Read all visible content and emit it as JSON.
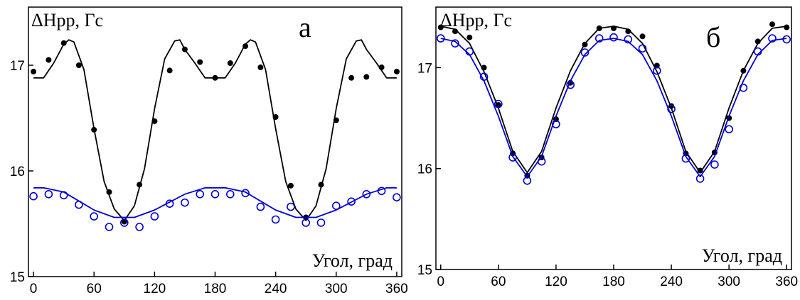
{
  "chart_data": [
    {
      "type": "scatter",
      "panel_label": "а",
      "ylabel": "ΔHpp, Гс",
      "xlabel": "Угол, град",
      "xlim": [
        -5,
        365
      ],
      "ylim": [
        15,
        17.55
      ],
      "x_ticks": [
        0,
        60,
        120,
        180,
        240,
        300,
        360
      ],
      "y_ticks": [
        15,
        16,
        17
      ],
      "series": [
        {
          "color": "#000000",
          "marker": "filled-circle",
          "points": [
            [
              0,
              16.94
            ],
            [
              15,
              17.05
            ],
            [
              30,
              17.21
            ],
            [
              45,
              17.0
            ],
            [
              60,
              16.39
            ],
            [
              75,
              15.8
            ],
            [
              90,
              15.52
            ],
            [
              105,
              15.87
            ],
            [
              120,
              16.47
            ],
            [
              135,
              16.95
            ],
            [
              150,
              17.15
            ],
            [
              165,
              17.03
            ],
            [
              180,
              16.88
            ],
            [
              195,
              17.02
            ],
            [
              210,
              17.18
            ],
            [
              225,
              16.98
            ],
            [
              240,
              16.51
            ],
            [
              255,
              15.86
            ],
            [
              270,
              15.56
            ],
            [
              285,
              15.87
            ],
            [
              300,
              16.48
            ],
            [
              315,
              16.88
            ],
            [
              330,
              16.89
            ],
            [
              345,
              16.98
            ],
            [
              360,
              16.94
            ]
          ]
        },
        {
          "color": "#000000",
          "marker": "line",
          "points": [
            [
              0,
              16.88
            ],
            [
              10,
              16.88
            ],
            [
              20,
              17.02
            ],
            [
              30,
              17.2
            ],
            [
              35,
              17.24
            ],
            [
              40,
              17.22
            ],
            [
              50,
              16.96
            ],
            [
              60,
              16.4
            ],
            [
              70,
              15.9
            ],
            [
              80,
              15.64
            ],
            [
              90,
              15.53
            ],
            [
              100,
              15.67
            ],
            [
              110,
              16.02
            ],
            [
              120,
              16.59
            ],
            [
              130,
              17.06
            ],
            [
              140,
              17.23
            ],
            [
              145,
              17.24
            ],
            [
              150,
              17.15
            ],
            [
              160,
              17.02
            ],
            [
              170,
              16.88
            ],
            [
              180,
              16.88
            ],
            [
              190,
              16.88
            ],
            [
              200,
              17.02
            ],
            [
              210,
              17.2
            ],
            [
              215,
              17.24
            ],
            [
              220,
              17.22
            ],
            [
              230,
              16.96
            ],
            [
              240,
              16.4
            ],
            [
              250,
              15.9
            ],
            [
              260,
              15.64
            ],
            [
              270,
              15.53
            ],
            [
              280,
              15.67
            ],
            [
              290,
              16.02
            ],
            [
              300,
              16.59
            ],
            [
              310,
              17.06
            ],
            [
              320,
              17.23
            ],
            [
              325,
              17.24
            ],
            [
              330,
              17.15
            ],
            [
              340,
              17.02
            ],
            [
              350,
              16.88
            ],
            [
              360,
              16.88
            ]
          ]
        },
        {
          "color": "#0000d0",
          "marker": "open-circle",
          "points": [
            [
              0,
              15.76
            ],
            [
              15,
              15.78
            ],
            [
              30,
              15.77
            ],
            [
              45,
              15.68
            ],
            [
              60,
              15.57
            ],
            [
              75,
              15.47
            ],
            [
              90,
              15.51
            ],
            [
              105,
              15.47
            ],
            [
              120,
              15.57
            ],
            [
              135,
              15.69
            ],
            [
              150,
              15.7
            ],
            [
              165,
              15.78
            ],
            [
              180,
              15.78
            ],
            [
              195,
              15.78
            ],
            [
              210,
              15.79
            ],
            [
              225,
              15.66
            ],
            [
              240,
              15.54
            ],
            [
              255,
              15.66
            ],
            [
              270,
              15.51
            ],
            [
              285,
              15.51
            ],
            [
              300,
              15.67
            ],
            [
              315,
              15.71
            ],
            [
              330,
              15.78
            ],
            [
              345,
              15.81
            ],
            [
              360,
              15.75
            ]
          ]
        },
        {
          "color": "#0000d0",
          "marker": "line",
          "points": [
            [
              0,
              15.84
            ],
            [
              10,
              15.84
            ],
            [
              30,
              15.8
            ],
            [
              60,
              15.63
            ],
            [
              80,
              15.56
            ],
            [
              100,
              15.56
            ],
            [
              120,
              15.63
            ],
            [
              150,
              15.78
            ],
            [
              170,
              15.84
            ],
            [
              190,
              15.84
            ],
            [
              210,
              15.8
            ],
            [
              240,
              15.63
            ],
            [
              260,
              15.56
            ],
            [
              280,
              15.56
            ],
            [
              300,
              15.63
            ],
            [
              330,
              15.78
            ],
            [
              350,
              15.84
            ],
            [
              360,
              15.84
            ]
          ]
        }
      ]
    },
    {
      "type": "scatter",
      "panel_label": "б",
      "ylabel": "ΔHpp, Гс",
      "xlabel": "Угол, град",
      "xlim": [
        -5,
        365
      ],
      "ylim": [
        15,
        17.6
      ],
      "x_ticks": [
        0,
        60,
        120,
        180,
        240,
        300,
        360
      ],
      "y_ticks": [
        15,
        16,
        17
      ],
      "series": [
        {
          "color": "#000000",
          "marker": "filled-circle",
          "points": [
            [
              0,
              17.4
            ],
            [
              15,
              17.36
            ],
            [
              30,
              17.3
            ],
            [
              45,
              17.0
            ],
            [
              60,
              16.63
            ],
            [
              75,
              16.15
            ],
            [
              90,
              15.93
            ],
            [
              105,
              16.11
            ],
            [
              120,
              16.49
            ],
            [
              135,
              16.85
            ],
            [
              150,
              17.23
            ],
            [
              165,
              17.39
            ],
            [
              180,
              17.39
            ],
            [
              195,
              17.36
            ],
            [
              210,
              17.31
            ],
            [
              225,
              17.02
            ],
            [
              240,
              16.62
            ],
            [
              255,
              16.15
            ],
            [
              270,
              15.98
            ],
            [
              285,
              16.16
            ],
            [
              300,
              16.5
            ],
            [
              315,
              16.97
            ],
            [
              330,
              17.26
            ],
            [
              345,
              17.43
            ],
            [
              360,
              17.4
            ]
          ]
        },
        {
          "color": "#000000",
          "marker": "line",
          "points": [
            [
              0,
              17.41
            ],
            [
              15,
              17.38
            ],
            [
              30,
              17.24
            ],
            [
              45,
              16.96
            ],
            [
              60,
              16.6
            ],
            [
              75,
              16.17
            ],
            [
              90,
              15.96
            ],
            [
              105,
              16.17
            ],
            [
              120,
              16.6
            ],
            [
              135,
              16.97
            ],
            [
              150,
              17.24
            ],
            [
              165,
              17.39
            ],
            [
              180,
              17.41
            ],
            [
              195,
              17.38
            ],
            [
              210,
              17.24
            ],
            [
              225,
              16.96
            ],
            [
              240,
              16.6
            ],
            [
              255,
              16.17
            ],
            [
              270,
              15.96
            ],
            [
              285,
              16.17
            ],
            [
              300,
              16.6
            ],
            [
              315,
              16.97
            ],
            [
              330,
              17.24
            ],
            [
              345,
              17.39
            ],
            [
              360,
              17.41
            ]
          ]
        },
        {
          "color": "#0000d0",
          "marker": "open-circle",
          "points": [
            [
              0,
              17.29
            ],
            [
              15,
              17.24
            ],
            [
              30,
              17.16
            ],
            [
              45,
              16.91
            ],
            [
              60,
              16.64
            ],
            [
              75,
              16.11
            ],
            [
              90,
              15.88
            ],
            [
              105,
              16.07
            ],
            [
              120,
              16.44
            ],
            [
              135,
              16.83
            ],
            [
              150,
              17.15
            ],
            [
              165,
              17.29
            ],
            [
              180,
              17.3
            ],
            [
              195,
              17.28
            ],
            [
              210,
              17.19
            ],
            [
              225,
              16.97
            ],
            [
              240,
              16.59
            ],
            [
              255,
              16.1
            ],
            [
              270,
              15.9
            ],
            [
              285,
              16.04
            ],
            [
              300,
              16.39
            ],
            [
              315,
              16.8
            ],
            [
              330,
              17.16
            ],
            [
              345,
              17.29
            ],
            [
              360,
              17.28
            ]
          ]
        },
        {
          "color": "#0000d0",
          "marker": "line",
          "points": [
            [
              0,
              17.29
            ],
            [
              15,
              17.26
            ],
            [
              30,
              17.13
            ],
            [
              45,
              16.87
            ],
            [
              60,
              16.52
            ],
            [
              75,
              16.12
            ],
            [
              90,
              15.92
            ],
            [
              105,
              16.12
            ],
            [
              120,
              16.52
            ],
            [
              135,
              16.87
            ],
            [
              150,
              17.13
            ],
            [
              165,
              17.27
            ],
            [
              180,
              17.29
            ],
            [
              195,
              17.26
            ],
            [
              210,
              17.13
            ],
            [
              225,
              16.87
            ],
            [
              240,
              16.52
            ],
            [
              255,
              16.12
            ],
            [
              270,
              15.92
            ],
            [
              285,
              16.12
            ],
            [
              300,
              16.52
            ],
            [
              315,
              16.87
            ],
            [
              330,
              17.13
            ],
            [
              345,
              17.27
            ],
            [
              360,
              17.29
            ]
          ]
        }
      ]
    }
  ]
}
